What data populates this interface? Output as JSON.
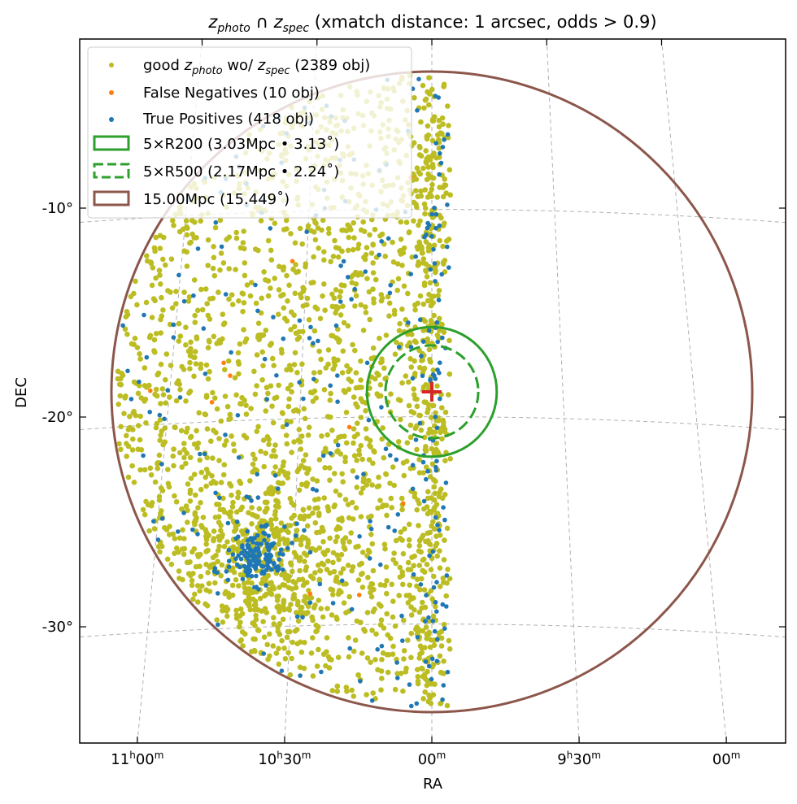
{
  "chart_data": {
    "type": "scatter",
    "title": {
      "z": "z",
      "photo_sub": "photo",
      "cap": "∩",
      "spec_sub": "spec",
      "rest": "(xmatch distance: 1 arcsec, odds > 0.9)"
    },
    "xlabel": "RA",
    "ylabel": "DEC",
    "x_ticks": [
      {
        "hour": "11",
        "min": "00",
        "h_sup": "h",
        "m_sup": "m",
        "ra_deg": 165.0
      },
      {
        "hour": "10",
        "min": "30",
        "h_sup": "h",
        "m_sup": "m",
        "ra_deg": 157.5
      },
      {
        "hour": "",
        "min": "00",
        "h_sup": "",
        "m_sup": "m",
        "ra_deg": 150.0
      },
      {
        "hour": "9",
        "min": "30",
        "h_sup": "h",
        "m_sup": "m",
        "ra_deg": 142.5
      },
      {
        "hour": "",
        "min": "00",
        "h_sup": "",
        "m_sup": "m",
        "ra_deg": 135.0
      }
    ],
    "y_ticks": [
      {
        "label": "-10°",
        "dec_deg": -10
      },
      {
        "label": "-20°",
        "dec_deg": -20
      },
      {
        "label": "-30°",
        "dec_deg": -30
      }
    ],
    "center": {
      "ra_deg": 150.0,
      "dec_deg": -18.8,
      "color": "#d62728"
    },
    "grid": true,
    "legend": {
      "placement": "top-left",
      "good": {
        "pre": "good",
        "z": "z",
        "sub1": "photo",
        "mid": "wo/",
        "sub2": "spec",
        "post": "(2389 obj)",
        "color": "#bcbd22"
      },
      "fn": {
        "label": "False Negatives (10 obj)",
        "color": "#ff7f0e"
      },
      "tp": {
        "label": "True Positives (418 obj)",
        "color": "#1f77b4"
      },
      "r200": {
        "label": "5×R200 (3.03Mpc • 3.13˚)",
        "color": "#2ca02c"
      },
      "r500": {
        "label": "5×R500 (2.17Mpc • 2.24˚)",
        "color": "#2ca02c"
      },
      "r15": {
        "label": "15.00Mpc (15.449˚)",
        "color": "#8c564b"
      }
    },
    "circles": [
      {
        "name": "5×R200",
        "radius_deg": 3.13,
        "style": "solid",
        "color": "#2ca02c"
      },
      {
        "name": "5×R500",
        "radius_deg": 2.24,
        "style": "dashed",
        "color": "#2ca02c"
      },
      {
        "name": "15.00Mpc",
        "radius_deg": 15.449,
        "style": "solid",
        "color": "#8c564b"
      }
    ],
    "series": [
      {
        "name": "good z_photo wo/ z_spec",
        "count": 2389,
        "color": "#bcbd22"
      },
      {
        "name": "False Negatives",
        "count": 10,
        "color": "#ff7f0e",
        "points": [
          [
            157.1,
            -12.5
          ],
          [
            160.6,
            -17.4
          ],
          [
            154.2,
            -20.5
          ],
          [
            153.7,
            -28.6
          ],
          [
            161.2,
            -19.3
          ]
        ]
      },
      {
        "name": "True Positives",
        "count": 418,
        "color": "#1f77b4",
        "cluster": {
          "ra_deg": 158.8,
          "dec_deg": -26.8
        }
      }
    ]
  }
}
